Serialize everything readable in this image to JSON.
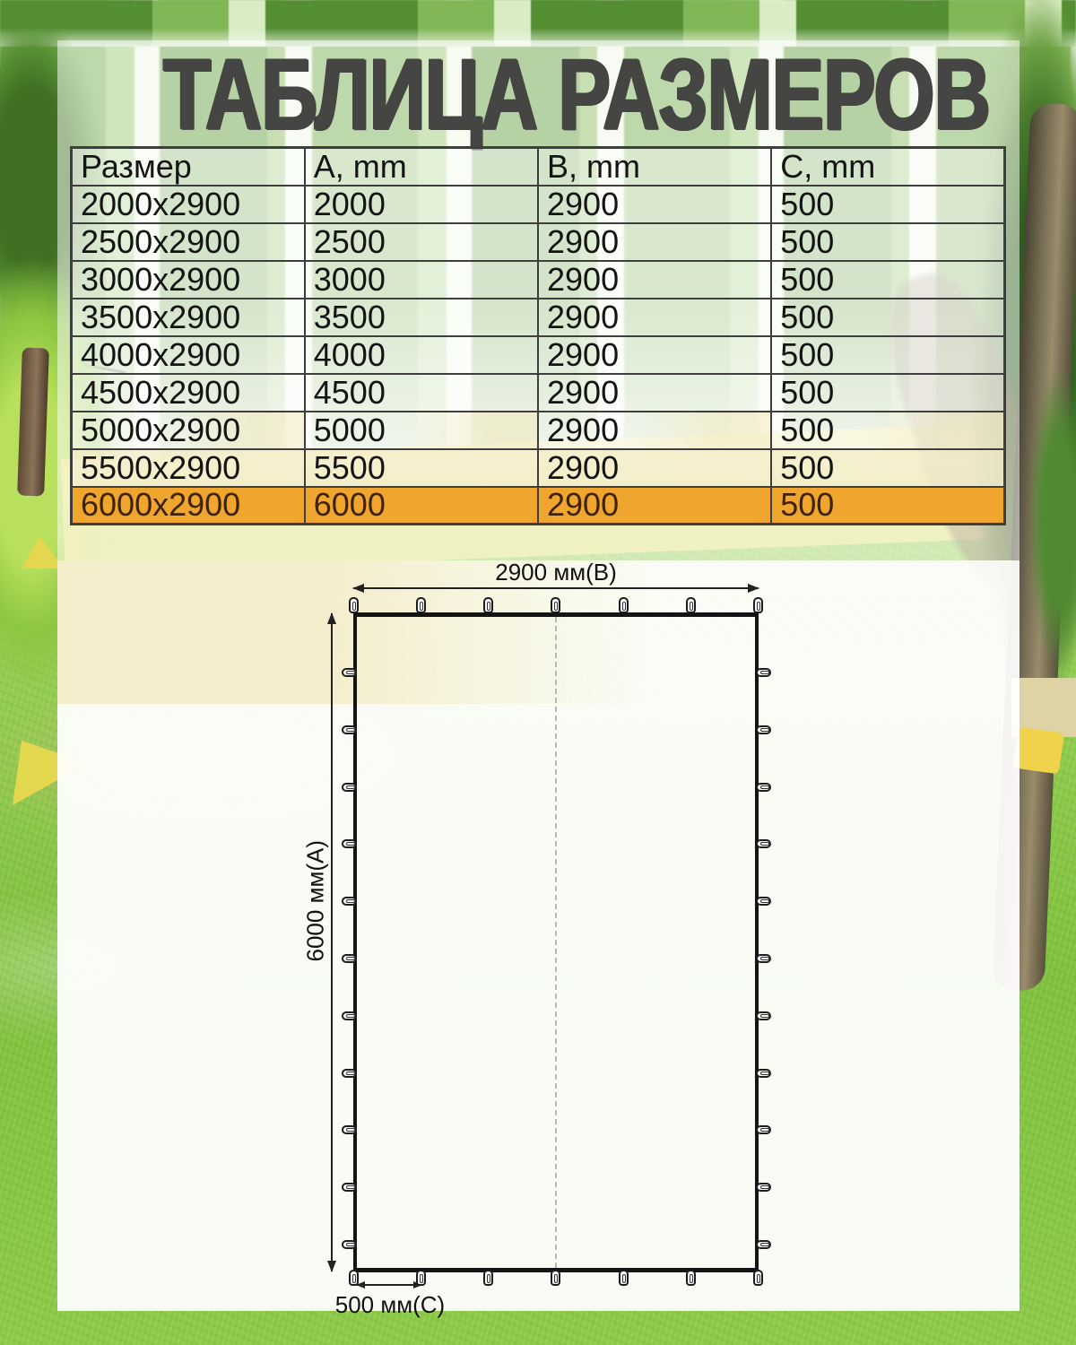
{
  "page_title": "ТАБЛИЦА РАЗМЕРОВ",
  "table": {
    "headers": [
      "Размер",
      "A, mm",
      "B, mm",
      "C, mm"
    ],
    "rows": [
      [
        "2000x2900",
        "2000",
        "2900",
        "500"
      ],
      [
        "2500x2900",
        "2500",
        "2900",
        "500"
      ],
      [
        "3000x2900",
        "3000",
        "2900",
        "500"
      ],
      [
        "3500x2900",
        "3500",
        "2900",
        "500"
      ],
      [
        "4000x2900",
        "4000",
        "2900",
        "500"
      ],
      [
        "4500x2900",
        "4500",
        "2900",
        "500"
      ],
      [
        "5000x2900",
        "5000",
        "2900",
        "500"
      ],
      [
        "5500x2900",
        "5500",
        "2900",
        "500"
      ],
      [
        "6000x2900",
        "6000",
        "2900",
        "500"
      ]
    ],
    "highlighted_row_index": 8,
    "highlighted_size": "6000x2900"
  },
  "diagram": {
    "top_dimension_label": "2900 мм(B)",
    "side_dimension_label": "6000 мм(A)",
    "grommet_spacing_label": "500 мм(C)"
  },
  "chart_data": {
    "type": "table",
    "title": "ТАБЛИЦА РАЗМЕРОВ",
    "columns": [
      "Размер",
      "A, mm",
      "B, mm",
      "C, mm"
    ],
    "rows": [
      [
        "2000x2900",
        2000,
        2900,
        500
      ],
      [
        "2500x2900",
        2500,
        2900,
        500
      ],
      [
        "3000x2900",
        3000,
        2900,
        500
      ],
      [
        "3500x2900",
        3500,
        2900,
        500
      ],
      [
        "4000x2900",
        4000,
        2900,
        500
      ],
      [
        "4500x2900",
        4500,
        2900,
        500
      ],
      [
        "5000x2900",
        5000,
        2900,
        500
      ],
      [
        "5500x2900",
        5500,
        2900,
        500
      ],
      [
        "6000x2900",
        6000,
        2900,
        500
      ]
    ]
  },
  "colors": {
    "highlight_orange": "#f0a52e",
    "cream_row": "#f5eecd",
    "title_gray": "#454543"
  }
}
